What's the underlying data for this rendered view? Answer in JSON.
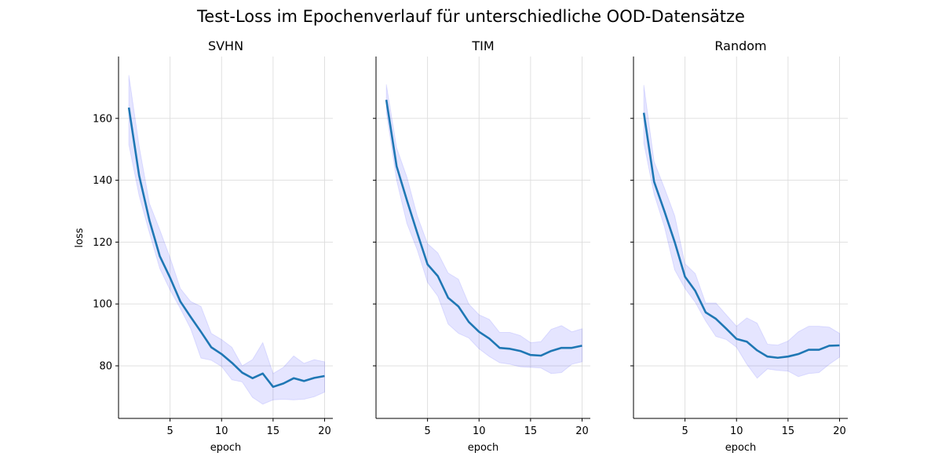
{
  "suptitle": "Test-Loss im Epochenverlauf für unterschiedliche OOD-Datensätze",
  "ylabel": "loss",
  "xlabel": "epoch",
  "colors": {
    "line": "#1f77b4",
    "band": "#0000ff",
    "grid": "#dddddd"
  },
  "chart_data": [
    {
      "type": "line",
      "title": "SVHN",
      "xlabel": "epoch",
      "ylabel": "loss",
      "xlim": [
        0,
        20.8
      ],
      "ylim": [
        63,
        180
      ],
      "xticks": [
        5,
        10,
        15,
        20
      ],
      "yticks": [
        80,
        100,
        120,
        140,
        160
      ],
      "grid": true,
      "x": [
        1,
        2,
        3,
        4,
        5,
        6,
        7,
        8,
        9,
        10,
        11,
        12,
        13,
        14,
        15,
        16,
        17,
        18,
        19,
        20
      ],
      "mean": [
        163.5,
        141.5,
        127.0,
        115.5,
        108.5,
        100.8,
        95.8,
        91.0,
        86.0,
        83.8,
        81.0,
        77.8,
        76.0,
        77.5,
        73.2,
        74.3,
        76.0,
        75.1,
        76.1,
        76.7
      ],
      "lower": [
        151.5,
        135.0,
        123.0,
        111.5,
        104.5,
        98.5,
        92.0,
        82.5,
        81.8,
        79.8,
        75.5,
        74.8,
        69.8,
        67.6,
        69.0,
        69.2,
        69.0,
        69.2,
        70.0,
        71.5
      ],
      "upper": [
        174.0,
        151.0,
        132.5,
        124.0,
        115.0,
        105.0,
        100.8,
        99.2,
        90.5,
        88.5,
        86.0,
        80.0,
        82.0,
        87.5,
        77.5,
        79.5,
        83.2,
        80.8,
        82.0,
        81.3
      ]
    },
    {
      "type": "line",
      "title": "TIM",
      "xlabel": "epoch",
      "xlim": [
        0,
        20.8
      ],
      "ylim": [
        63,
        180
      ],
      "xticks": [
        5,
        10,
        15,
        20
      ],
      "yticks": [
        80,
        100,
        120,
        140,
        160
      ],
      "grid": true,
      "x": [
        1,
        2,
        3,
        4,
        5,
        6,
        7,
        8,
        9,
        10,
        11,
        12,
        13,
        14,
        15,
        16,
        17,
        18,
        19,
        20
      ],
      "mean": [
        166.0,
        144.5,
        133.5,
        123.0,
        112.8,
        109.0,
        102.0,
        99.2,
        94.2,
        91.0,
        88.8,
        85.8,
        85.5,
        84.8,
        83.5,
        83.3,
        84.8,
        85.8,
        85.8,
        86.5
      ],
      "lower": [
        162.0,
        140.0,
        126.0,
        117.5,
        107.0,
        102.5,
        93.5,
        90.5,
        89.0,
        85.5,
        83.0,
        81.0,
        80.5,
        79.7,
        79.5,
        79.3,
        77.5,
        77.8,
        80.5,
        81.3
      ],
      "upper": [
        171.0,
        150.5,
        141.0,
        128.5,
        119.5,
        116.5,
        110.0,
        108.0,
        100.0,
        96.5,
        95.0,
        90.8,
        90.8,
        89.8,
        87.5,
        87.8,
        91.8,
        93.0,
        91.0,
        92.0
      ]
    },
    {
      "type": "line",
      "title": "Random",
      "xlabel": "epoch",
      "xlim": [
        0,
        20.8
      ],
      "ylim": [
        63,
        180
      ],
      "xticks": [
        5,
        10,
        15,
        20
      ],
      "yticks": [
        80,
        100,
        120,
        140,
        160
      ],
      "grid": true,
      "x": [
        1,
        2,
        3,
        4,
        5,
        6,
        7,
        8,
        9,
        10,
        11,
        12,
        13,
        14,
        15,
        16,
        17,
        18,
        19,
        20
      ],
      "mean": [
        161.8,
        139.5,
        130.0,
        120.0,
        108.8,
        104.2,
        97.3,
        95.2,
        92.0,
        88.7,
        87.8,
        85.0,
        83.0,
        82.6,
        83.0,
        83.8,
        85.2,
        85.2,
        86.5,
        86.6
      ],
      "lower": [
        152.0,
        135.5,
        125.0,
        111.0,
        105.0,
        100.5,
        94.5,
        89.5,
        88.5,
        86.0,
        80.5,
        76.0,
        79.0,
        78.5,
        78.3,
        76.5,
        77.5,
        77.8,
        80.5,
        82.8
      ],
      "upper": [
        170.8,
        146.0,
        137.5,
        128.5,
        113.0,
        109.8,
        100.3,
        100.3,
        96.5,
        92.8,
        95.5,
        93.8,
        87.0,
        86.7,
        88.0,
        91.0,
        92.8,
        92.8,
        92.5,
        90.5
      ]
    }
  ]
}
